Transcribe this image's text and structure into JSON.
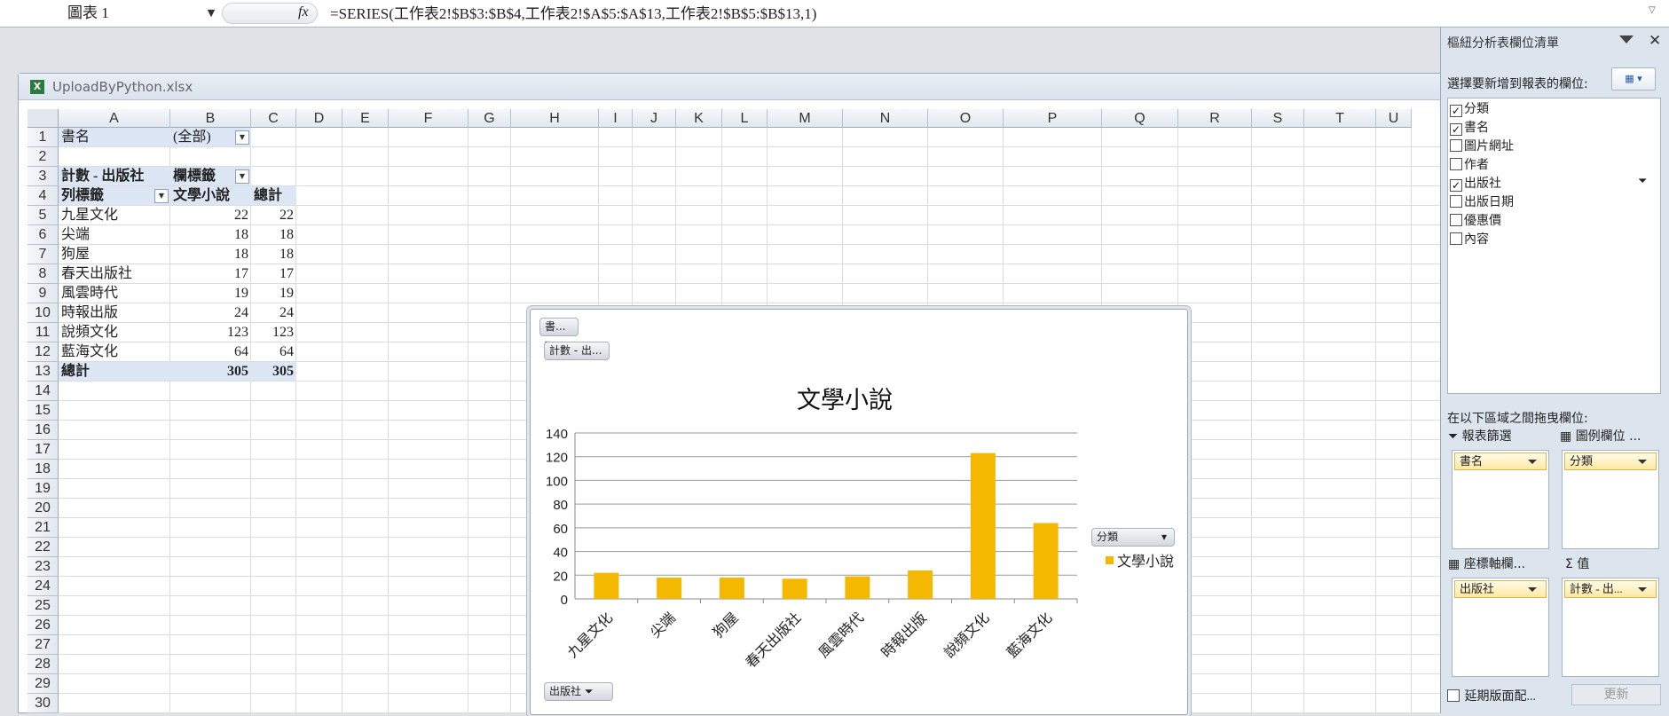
{
  "formula_bar": {
    "name_box": "圖表 1",
    "fx": "fx",
    "formula": "=SERIES(工作表2!$B$3:$B$4,工作表2!$A$5:$A$13,工作表2!$B$5:$B$13,1)"
  },
  "workbook": {
    "title": "UploadByPython.xlsx",
    "columns": [
      "A",
      "B",
      "C",
      "D",
      "E",
      "F",
      "G",
      "H",
      "I",
      "J",
      "K",
      "L",
      "M",
      "N",
      "O",
      "P",
      "Q",
      "R",
      "S",
      "T",
      "U"
    ],
    "rows": [
      "1",
      "2",
      "3",
      "4",
      "5",
      "6",
      "7",
      "8",
      "9",
      "10",
      "11",
      "12",
      "13",
      "14",
      "15",
      "16",
      "17",
      "18",
      "19",
      "20",
      "21",
      "22",
      "23",
      "24",
      "25",
      "26",
      "27",
      "28",
      "29",
      "30"
    ]
  },
  "pivot": {
    "filter_label": "書名",
    "filter_value": "(全部)",
    "count_label": "計數 - 出版社",
    "col_label_hdr": "欄標籤",
    "row_label_hdr": "列標籤",
    "col_value": "文學小說",
    "total_hdr": "總計",
    "rows": [
      {
        "label": "九星文化",
        "value": "22",
        "total": "22"
      },
      {
        "label": "尖端",
        "value": "18",
        "total": "18"
      },
      {
        "label": "狗屋",
        "value": "18",
        "total": "18"
      },
      {
        "label": "春天出版社",
        "value": "17",
        "total": "17"
      },
      {
        "label": "風雲時代",
        "value": "19",
        "total": "19"
      },
      {
        "label": "時報出版",
        "value": "24",
        "total": "24"
      },
      {
        "label": "說頻文化",
        "value": "123",
        "total": "123"
      },
      {
        "label": "藍海文化",
        "value": "64",
        "total": "64"
      }
    ],
    "grand_total_label": "總計",
    "grand_total_value": "305",
    "grand_total_total": "305"
  },
  "chart_buttons": {
    "book": "書...",
    "count": "計數 - 出...",
    "legend_field": "分類",
    "axis_field": "出版社"
  },
  "chart_data": {
    "type": "bar",
    "title": "文學小說",
    "categories": [
      "九星文化",
      "尖端",
      "狗屋",
      "春天出版社",
      "風雲時代",
      "時報出版",
      "說頻文化",
      "藍海文化"
    ],
    "series": [
      {
        "name": "文學小說",
        "values": [
          22,
          18,
          18,
          17,
          19,
          24,
          123,
          64
        ],
        "color": "#f5b800"
      }
    ],
    "ylim": [
      0,
      140
    ],
    "yticks": [
      "0",
      "20",
      "40",
      "60",
      "80",
      "100",
      "120",
      "140"
    ],
    "grid": true,
    "legend": "right"
  },
  "field_list": {
    "title": "樞紐分析表欄位清單",
    "choose_label": "選擇要新增到報表的欄位:",
    "fields": [
      {
        "label": "分類",
        "checked": true
      },
      {
        "label": "書名",
        "checked": true
      },
      {
        "label": "圖片網址",
        "checked": false
      },
      {
        "label": "作者",
        "checked": false
      },
      {
        "label": "出版社",
        "checked": true
      },
      {
        "label": "出版日期",
        "checked": false
      },
      {
        "label": "優惠價",
        "checked": false
      },
      {
        "label": "內容",
        "checked": false
      }
    ],
    "drag_label": "在以下區域之間拖曳欄位:",
    "report_filter": "報表篩選",
    "legend_fields": "圖例欄位 ...",
    "axis_fields": "座標軸欄...",
    "values": "值",
    "report_filter_item": "書名",
    "legend_item": "分類",
    "axis_item": "出版社",
    "values_item": "計數 - 出...",
    "defer_label": "延期版面配...",
    "update_label": "更新"
  }
}
